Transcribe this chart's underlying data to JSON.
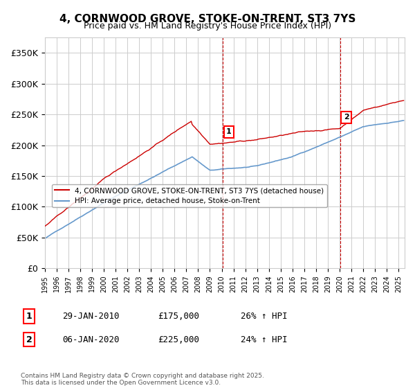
{
  "title": "4, CORNWOOD GROVE, STOKE-ON-TRENT, ST3 7YS",
  "subtitle": "Price paid vs. HM Land Registry's House Price Index (HPI)",
  "legend_property": "4, CORNWOOD GROVE, STOKE-ON-TRENT, ST3 7YS (detached house)",
  "legend_hpi": "HPI: Average price, detached house, Stoke-on-Trent",
  "property_color": "#cc0000",
  "hpi_color": "#6699cc",
  "sale1_date_num": 2010.08,
  "sale1_label": "1",
  "sale1_price": 175000,
  "sale1_hpi_pct": "26% ↑ HPI",
  "sale1_date_str": "29-JAN-2010",
  "sale2_date_num": 2020.03,
  "sale2_label": "2",
  "sale2_price": 225000,
  "sale2_hpi_pct": "24% ↑ HPI",
  "sale2_date_str": "06-JAN-2020",
  "vline_color": "#cc0000",
  "grid_color": "#cccccc",
  "ylim_min": 0,
  "ylim_max": 375000,
  "xlim_min": 1995,
  "xlim_max": 2025.5,
  "copyright": "Contains HM Land Registry data © Crown copyright and database right 2025.\nThis data is licensed under the Open Government Licence v3.0.",
  "background_color": "#ffffff",
  "yticks": [
    0,
    50000,
    100000,
    150000,
    200000,
    250000,
    300000,
    350000
  ],
  "ytick_labels": [
    "£0",
    "£50K",
    "£100K",
    "£150K",
    "£200K",
    "£250K",
    "£300K",
    "£350K"
  ]
}
